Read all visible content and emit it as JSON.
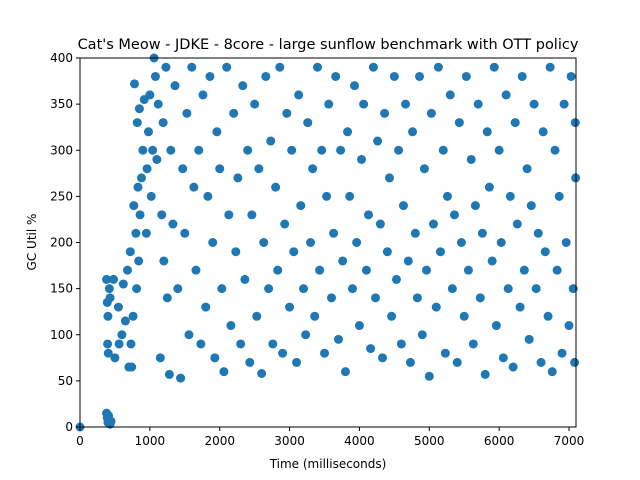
{
  "chart_data": {
    "type": "scatter",
    "title": "Cat's Meow - JDKE - 8core -  large sunflow benchmark with OTT policy",
    "xlabel": "Time (milliseconds)",
    "ylabel": "GC Util %",
    "xlim": [
      0,
      7100
    ],
    "ylim": [
      0,
      400
    ],
    "xticks": [
      0,
      1000,
      2000,
      3000,
      4000,
      5000,
      6000,
      7000
    ],
    "yticks": [
      0,
      50,
      100,
      150,
      200,
      250,
      300,
      350,
      400
    ],
    "grid": false,
    "marker_color": "#1f77b4",
    "series": [
      {
        "points": [
          [
            0,
            0
          ],
          [
            380,
            15
          ],
          [
            390,
            10
          ],
          [
            400,
            5
          ],
          [
            410,
            12
          ],
          [
            420,
            8
          ],
          [
            430,
            3
          ],
          [
            445,
            6
          ],
          [
            380,
            160
          ],
          [
            390,
            135
          ],
          [
            395,
            90
          ],
          [
            400,
            120
          ],
          [
            405,
            80
          ],
          [
            420,
            150
          ],
          [
            430,
            140
          ],
          [
            480,
            160
          ],
          [
            500,
            75
          ],
          [
            550,
            130
          ],
          [
            560,
            90
          ],
          [
            600,
            100
          ],
          [
            620,
            155
          ],
          [
            650,
            115
          ],
          [
            680,
            170
          ],
          [
            700,
            65
          ],
          [
            720,
            190
          ],
          [
            730,
            90
          ],
          [
            740,
            65
          ],
          [
            760,
            120
          ],
          [
            770,
            240
          ],
          [
            780,
            372
          ],
          [
            800,
            210
          ],
          [
            810,
            150
          ],
          [
            820,
            330
          ],
          [
            830,
            260
          ],
          [
            840,
            180
          ],
          [
            850,
            345
          ],
          [
            860,
            230
          ],
          [
            880,
            270
          ],
          [
            900,
            300
          ],
          [
            920,
            355
          ],
          [
            950,
            210
          ],
          [
            960,
            280
          ],
          [
            980,
            320
          ],
          [
            1000,
            360
          ],
          [
            1020,
            250
          ],
          [
            1040,
            300
          ],
          [
            1060,
            400
          ],
          [
            1080,
            380
          ],
          [
            1100,
            290
          ],
          [
            1120,
            350
          ],
          [
            1150,
            75
          ],
          [
            1170,
            230
          ],
          [
            1190,
            330
          ],
          [
            1200,
            180
          ],
          [
            1230,
            390
          ],
          [
            1250,
            140
          ],
          [
            1280,
            57
          ],
          [
            1300,
            300
          ],
          [
            1330,
            220
          ],
          [
            1360,
            370
          ],
          [
            1400,
            150
          ],
          [
            1440,
            53
          ],
          [
            1470,
            280
          ],
          [
            1500,
            210
          ],
          [
            1530,
            340
          ],
          [
            1560,
            100
          ],
          [
            1600,
            390
          ],
          [
            1630,
            260
          ],
          [
            1660,
            170
          ],
          [
            1700,
            300
          ],
          [
            1730,
            90
          ],
          [
            1760,
            360
          ],
          [
            1800,
            130
          ],
          [
            1830,
            250
          ],
          [
            1860,
            380
          ],
          [
            1900,
            200
          ],
          [
            1930,
            75
          ],
          [
            1960,
            320
          ],
          [
            2000,
            280
          ],
          [
            2030,
            150
          ],
          [
            2060,
            60
          ],
          [
            2100,
            390
          ],
          [
            2130,
            230
          ],
          [
            2160,
            110
          ],
          [
            2200,
            340
          ],
          [
            2230,
            190
          ],
          [
            2260,
            270
          ],
          [
            2300,
            90
          ],
          [
            2330,
            370
          ],
          [
            2360,
            160
          ],
          [
            2400,
            300
          ],
          [
            2430,
            70
          ],
          [
            2460,
            230
          ],
          [
            2500,
            350
          ],
          [
            2530,
            120
          ],
          [
            2560,
            280
          ],
          [
            2600,
            58
          ],
          [
            2630,
            200
          ],
          [
            2660,
            380
          ],
          [
            2700,
            150
          ],
          [
            2730,
            310
          ],
          [
            2760,
            90
          ],
          [
            2800,
            260
          ],
          [
            2830,
            170
          ],
          [
            2860,
            390
          ],
          [
            2900,
            80
          ],
          [
            2930,
            220
          ],
          [
            2960,
            340
          ],
          [
            3000,
            130
          ],
          [
            3030,
            300
          ],
          [
            3060,
            190
          ],
          [
            3100,
            70
          ],
          [
            3130,
            360
          ],
          [
            3160,
            240
          ],
          [
            3200,
            150
          ],
          [
            3230,
            100
          ],
          [
            3260,
            330
          ],
          [
            3300,
            200
          ],
          [
            3330,
            280
          ],
          [
            3360,
            120
          ],
          [
            3400,
            390
          ],
          [
            3430,
            170
          ],
          [
            3460,
            300
          ],
          [
            3500,
            80
          ],
          [
            3530,
            250
          ],
          [
            3560,
            350
          ],
          [
            3600,
            140
          ],
          [
            3630,
            210
          ],
          [
            3660,
            380
          ],
          [
            3700,
            95
          ],
          [
            3730,
            300
          ],
          [
            3760,
            180
          ],
          [
            3800,
            60
          ],
          [
            3830,
            320
          ],
          [
            3860,
            250
          ],
          [
            3900,
            150
          ],
          [
            3930,
            370
          ],
          [
            3960,
            200
          ],
          [
            4000,
            110
          ],
          [
            4030,
            290
          ],
          [
            4060,
            350
          ],
          [
            4100,
            170
          ],
          [
            4130,
            230
          ],
          [
            4160,
            85
          ],
          [
            4200,
            390
          ],
          [
            4230,
            140
          ],
          [
            4260,
            310
          ],
          [
            4300,
            220
          ],
          [
            4330,
            75
          ],
          [
            4360,
            340
          ],
          [
            4400,
            190
          ],
          [
            4430,
            270
          ],
          [
            4460,
            120
          ],
          [
            4500,
            380
          ],
          [
            4530,
            160
          ],
          [
            4560,
            300
          ],
          [
            4600,
            90
          ],
          [
            4630,
            240
          ],
          [
            4660,
            350
          ],
          [
            4700,
            180
          ],
          [
            4730,
            70
          ],
          [
            4760,
            320
          ],
          [
            4800,
            210
          ],
          [
            4830,
            140
          ],
          [
            4860,
            380
          ],
          [
            4900,
            100
          ],
          [
            4930,
            280
          ],
          [
            4960,
            170
          ],
          [
            5000,
            55
          ],
          [
            5030,
            340
          ],
          [
            5060,
            220
          ],
          [
            5100,
            130
          ],
          [
            5130,
            390
          ],
          [
            5160,
            190
          ],
          [
            5200,
            300
          ],
          [
            5230,
            80
          ],
          [
            5260,
            250
          ],
          [
            5300,
            360
          ],
          [
            5330,
            150
          ],
          [
            5360,
            230
          ],
          [
            5400,
            70
          ],
          [
            5430,
            330
          ],
          [
            5460,
            200
          ],
          [
            5500,
            120
          ],
          [
            5530,
            380
          ],
          [
            5560,
            170
          ],
          [
            5600,
            290
          ],
          [
            5630,
            90
          ],
          [
            5660,
            240
          ],
          [
            5700,
            350
          ],
          [
            5730,
            140
          ],
          [
            5760,
            210
          ],
          [
            5800,
            57
          ],
          [
            5830,
            320
          ],
          [
            5860,
            260
          ],
          [
            5900,
            180
          ],
          [
            5930,
            390
          ],
          [
            5960,
            110
          ],
          [
            6000,
            300
          ],
          [
            6030,
            200
          ],
          [
            6060,
            75
          ],
          [
            6100,
            360
          ],
          [
            6130,
            150
          ],
          [
            6160,
            250
          ],
          [
            6200,
            65
          ],
          [
            6230,
            330
          ],
          [
            6260,
            220
          ],
          [
            6300,
            130
          ],
          [
            6330,
            380
          ],
          [
            6360,
            170
          ],
          [
            6400,
            280
          ],
          [
            6430,
            95
          ],
          [
            6460,
            240
          ],
          [
            6500,
            350
          ],
          [
            6530,
            150
          ],
          [
            6560,
            210
          ],
          [
            6600,
            70
          ],
          [
            6630,
            320
          ],
          [
            6660,
            190
          ],
          [
            6700,
            120
          ],
          [
            6730,
            390
          ],
          [
            6760,
            60
          ],
          [
            6800,
            300
          ],
          [
            6830,
            170
          ],
          [
            6860,
            250
          ],
          [
            6900,
            80
          ],
          [
            6930,
            350
          ],
          [
            6960,
            200
          ],
          [
            7000,
            110
          ],
          [
            7030,
            380
          ],
          [
            7060,
            150
          ],
          [
            7080,
            70
          ],
          [
            7090,
            330
          ],
          [
            7095,
            270
          ]
        ]
      }
    ]
  }
}
